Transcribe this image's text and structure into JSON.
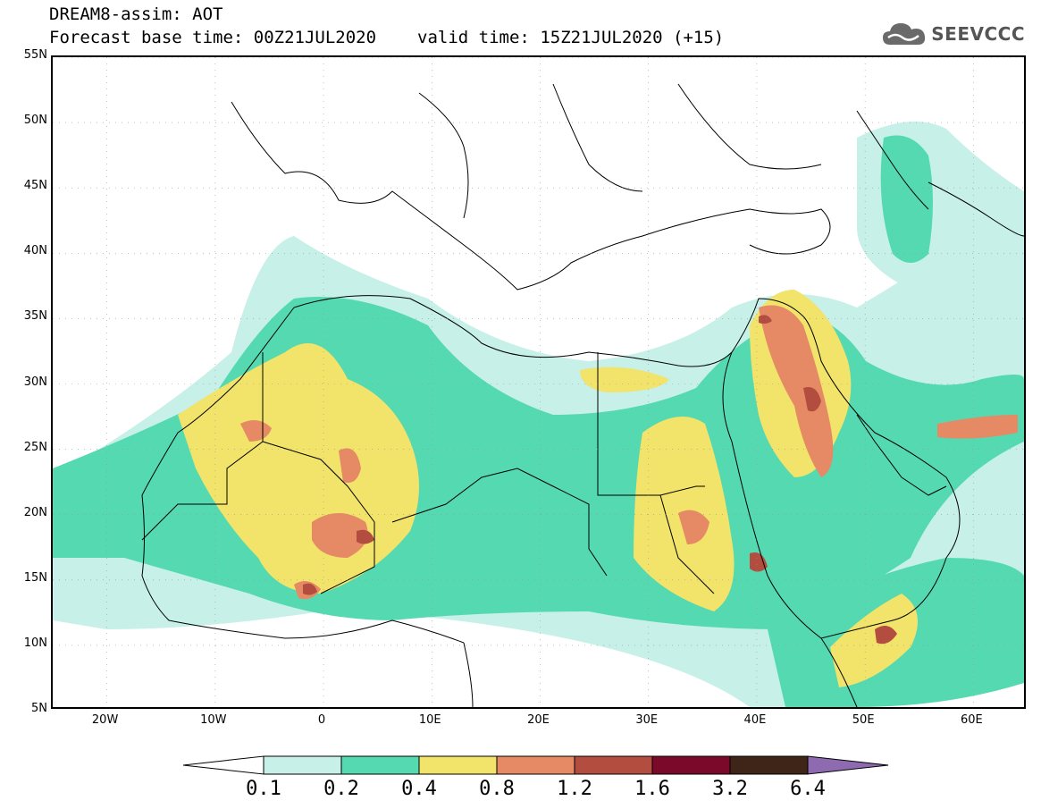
{
  "header": {
    "line1": "DREAM8-assim: AOT",
    "base_time": "Forecast base time: 00Z21JUL2020",
    "valid_time": "valid time: 15Z21JUL2020 (+15)"
  },
  "logo": {
    "text": "SEEVCCC",
    "icon": "cloud-logo-icon",
    "color": "#555555"
  },
  "axes": {
    "lat_labels": [
      "55N",
      "50N",
      "45N",
      "40N",
      "35N",
      "30N",
      "25N",
      "20N",
      "15N",
      "10N",
      "5N"
    ],
    "lon_labels": [
      "20W",
      "10W",
      "0",
      "10E",
      "20E",
      "30E",
      "40E",
      "50E",
      "60E"
    ]
  },
  "colorbar": {
    "labels": [
      "0.1",
      "0.2",
      "0.4",
      "0.8",
      "1.2",
      "1.6",
      "3.2",
      "6.4"
    ],
    "colors": [
      "#ffffff",
      "#c6f0e8",
      "#55d9b1",
      "#f2e36b",
      "#e58a65",
      "#b24d3f",
      "#7b0a2a",
      "#3e2518",
      "#8e6ab0"
    ]
  },
  "map": {
    "lon_range": [
      -25,
      65
    ],
    "lat_range": [
      5,
      55
    ],
    "field": "AOT"
  }
}
